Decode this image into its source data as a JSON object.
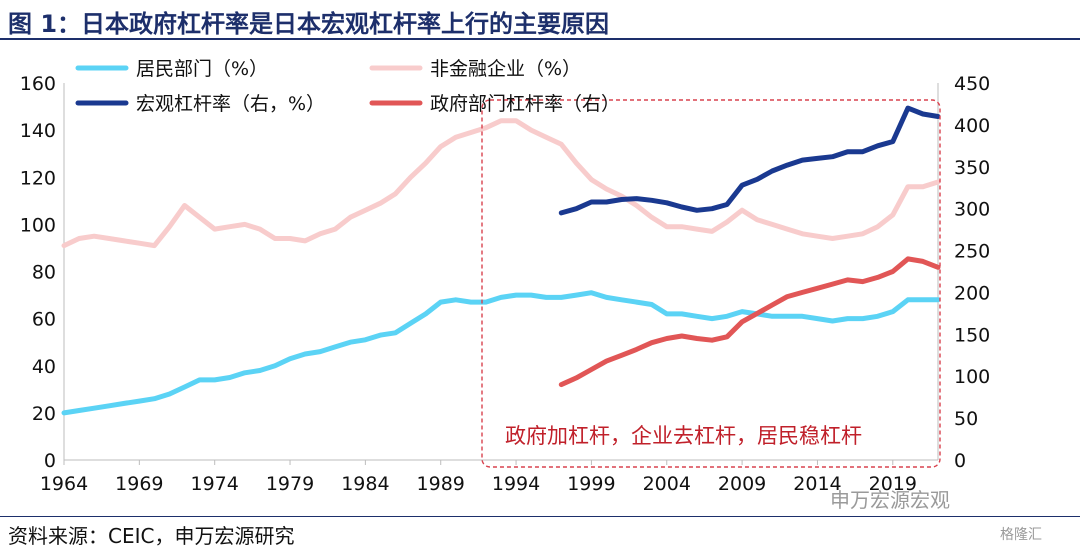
{
  "figure_title": "图 1：日本政府杠杆率是日本宏观杠杆率上行的主要原因",
  "source": "资料来源：CEIC，申万宏源研究",
  "watermark": "申万宏源宏观",
  "watermark2": "格隆汇",
  "annotation": "政府加杠杆，企业去杠杆，居民稳杠杆",
  "colors": {
    "household": "#5bd3f5",
    "nonfin": "#f8cccc",
    "macro": "#1a3990",
    "government": "#e15656",
    "annotation_box": "#d9424e",
    "title": "#1d2f6b"
  },
  "chart_data": {
    "type": "line",
    "xlim": [
      1964,
      2022
    ],
    "x_ticks": [
      "1964",
      "1969",
      "1974",
      "1979",
      "1984",
      "1989",
      "1994",
      "1999",
      "2004",
      "2009",
      "2014",
      "2019"
    ],
    "y_left_ticks": [
      "0",
      "20",
      "40",
      "60",
      "80",
      "100",
      "120",
      "140",
      "160"
    ],
    "y_right_ticks": [
      "0",
      "50",
      "100",
      "150",
      "200",
      "250",
      "300",
      "350",
      "400",
      "450"
    ],
    "ylim_left": [
      0,
      160
    ],
    "ylim_right": [
      0,
      450
    ],
    "legend_placement": "top",
    "series": [
      {
        "name": "居民部门（%）",
        "axis": "left",
        "points": [
          [
            1964,
            20
          ],
          [
            1965,
            21
          ],
          [
            1966,
            22
          ],
          [
            1967,
            23
          ],
          [
            1968,
            24
          ],
          [
            1969,
            25
          ],
          [
            1970,
            26
          ],
          [
            1971,
            28
          ],
          [
            1972,
            31
          ],
          [
            1973,
            34
          ],
          [
            1974,
            34
          ],
          [
            1975,
            35
          ],
          [
            1976,
            37
          ],
          [
            1977,
            38
          ],
          [
            1978,
            40
          ],
          [
            1979,
            43
          ],
          [
            1980,
            45
          ],
          [
            1981,
            46
          ],
          [
            1982,
            48
          ],
          [
            1983,
            50
          ],
          [
            1984,
            51
          ],
          [
            1985,
            53
          ],
          [
            1986,
            54
          ],
          [
            1987,
            58
          ],
          [
            1988,
            62
          ],
          [
            1989,
            67
          ],
          [
            1990,
            68
          ],
          [
            1991,
            67
          ],
          [
            1992,
            67
          ],
          [
            1993,
            69
          ],
          [
            1994,
            70
          ],
          [
            1995,
            70
          ],
          [
            1996,
            69
          ],
          [
            1997,
            69
          ],
          [
            1998,
            70
          ],
          [
            1999,
            71
          ],
          [
            2000,
            69
          ],
          [
            2001,
            68
          ],
          [
            2002,
            67
          ],
          [
            2003,
            66
          ],
          [
            2004,
            62
          ],
          [
            2005,
            62
          ],
          [
            2006,
            61
          ],
          [
            2007,
            60
          ],
          [
            2008,
            61
          ],
          [
            2009,
            63
          ],
          [
            2010,
            62
          ],
          [
            2011,
            61
          ],
          [
            2012,
            61
          ],
          [
            2013,
            61
          ],
          [
            2014,
            60
          ],
          [
            2015,
            59
          ],
          [
            2016,
            60
          ],
          [
            2017,
            60
          ],
          [
            2018,
            61
          ],
          [
            2019,
            63
          ],
          [
            2020,
            68
          ],
          [
            2021,
            68
          ],
          [
            2022,
            68
          ]
        ]
      },
      {
        "name": "非金融企业（%）",
        "axis": "left",
        "points": [
          [
            1964,
            91
          ],
          [
            1965,
            94
          ],
          [
            1966,
            95
          ],
          [
            1967,
            94
          ],
          [
            1968,
            93
          ],
          [
            1969,
            92
          ],
          [
            1970,
            91
          ],
          [
            1971,
            99
          ],
          [
            1972,
            108
          ],
          [
            1973,
            103
          ],
          [
            1974,
            98
          ],
          [
            1975,
            99
          ],
          [
            1976,
            100
          ],
          [
            1977,
            98
          ],
          [
            1978,
            94
          ],
          [
            1979,
            94
          ],
          [
            1980,
            93
          ],
          [
            1981,
            96
          ],
          [
            1982,
            98
          ],
          [
            1983,
            103
          ],
          [
            1984,
            106
          ],
          [
            1985,
            109
          ],
          [
            1986,
            113
          ],
          [
            1987,
            120
          ],
          [
            1988,
            126
          ],
          [
            1989,
            133
          ],
          [
            1990,
            137
          ],
          [
            1991,
            139
          ],
          [
            1992,
            141
          ],
          [
            1993,
            144
          ],
          [
            1994,
            144
          ],
          [
            1995,
            140
          ],
          [
            1996,
            137
          ],
          [
            1997,
            134
          ],
          [
            1998,
            126
          ],
          [
            1999,
            119
          ],
          [
            2000,
            115
          ],
          [
            2001,
            112
          ],
          [
            2002,
            108
          ],
          [
            2003,
            103
          ],
          [
            2004,
            99
          ],
          [
            2005,
            99
          ],
          [
            2006,
            98
          ],
          [
            2007,
            97
          ],
          [
            2008,
            101
          ],
          [
            2009,
            106
          ],
          [
            2010,
            102
          ],
          [
            2011,
            100
          ],
          [
            2012,
            98
          ],
          [
            2013,
            96
          ],
          [
            2014,
            95
          ],
          [
            2015,
            94
          ],
          [
            2016,
            95
          ],
          [
            2017,
            96
          ],
          [
            2018,
            99
          ],
          [
            2019,
            104
          ],
          [
            2020,
            116
          ],
          [
            2021,
            116
          ],
          [
            2022,
            118
          ]
        ]
      },
      {
        "name": "宏观杠杆率（右，%）",
        "axis": "right",
        "points": [
          [
            1997,
            295
          ],
          [
            1998,
            300
          ],
          [
            1999,
            308
          ],
          [
            2000,
            308
          ],
          [
            2001,
            311
          ],
          [
            2002,
            312
          ],
          [
            2003,
            310
          ],
          [
            2004,
            307
          ],
          [
            2005,
            302
          ],
          [
            2006,
            298
          ],
          [
            2007,
            300
          ],
          [
            2008,
            305
          ],
          [
            2009,
            328
          ],
          [
            2010,
            335
          ],
          [
            2011,
            345
          ],
          [
            2012,
            352
          ],
          [
            2013,
            358
          ],
          [
            2014,
            360
          ],
          [
            2015,
            362
          ],
          [
            2016,
            368
          ],
          [
            2017,
            368
          ],
          [
            2018,
            375
          ],
          [
            2019,
            380
          ],
          [
            2020,
            420
          ],
          [
            2021,
            413
          ],
          [
            2022,
            410
          ]
        ]
      },
      {
        "name": "政府部门杠杆率（右）",
        "axis": "right",
        "points": [
          [
            1997,
            90
          ],
          [
            1998,
            98
          ],
          [
            1999,
            108
          ],
          [
            2000,
            118
          ],
          [
            2001,
            125
          ],
          [
            2002,
            132
          ],
          [
            2003,
            140
          ],
          [
            2004,
            145
          ],
          [
            2005,
            148
          ],
          [
            2006,
            145
          ],
          [
            2007,
            143
          ],
          [
            2008,
            147
          ],
          [
            2009,
            165
          ],
          [
            2010,
            175
          ],
          [
            2011,
            185
          ],
          [
            2012,
            195
          ],
          [
            2013,
            200
          ],
          [
            2014,
            205
          ],
          [
            2015,
            210
          ],
          [
            2016,
            215
          ],
          [
            2017,
            213
          ],
          [
            2018,
            218
          ],
          [
            2019,
            225
          ],
          [
            2020,
            240
          ],
          [
            2021,
            237
          ],
          [
            2022,
            230
          ]
        ]
      }
    ]
  }
}
